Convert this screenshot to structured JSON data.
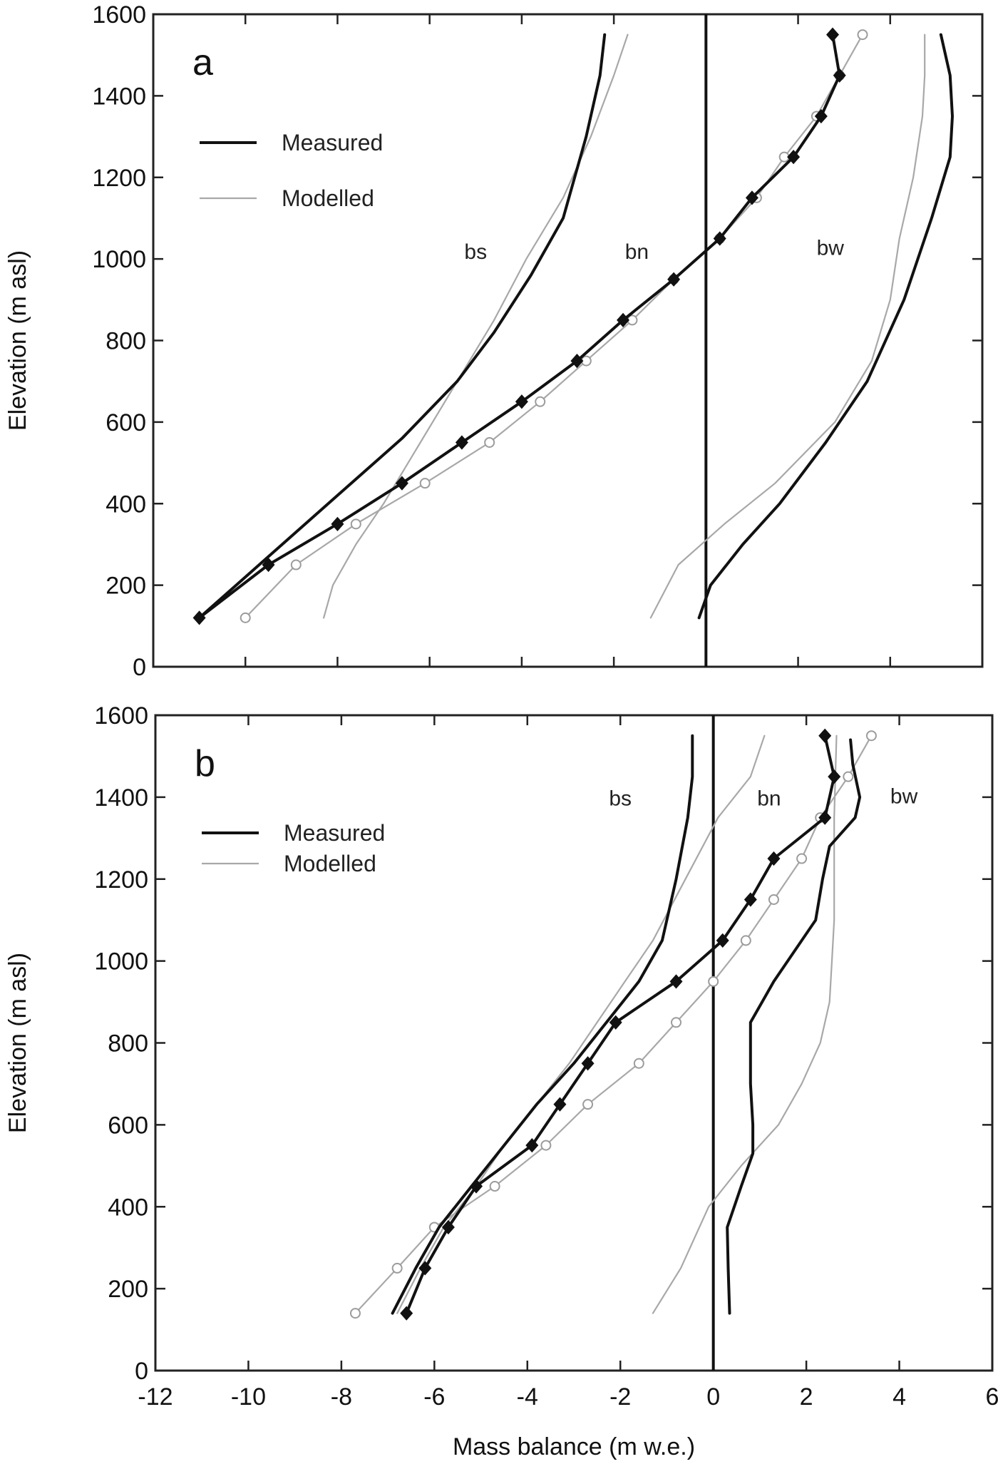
{
  "chart_data": [
    {
      "type": "line",
      "panel_label": "a",
      "xlim": [
        -12,
        6
      ],
      "ylim": [
        0,
        1600
      ],
      "x_ticks": [
        -12,
        -10,
        -8,
        -6,
        -4,
        -2,
        0,
        2,
        4,
        6
      ],
      "y_ticks": [
        0,
        200,
        400,
        600,
        800,
        1000,
        1200,
        1400,
        1600
      ],
      "y_tick_labels": [
        "0",
        "200",
        "400",
        "600",
        "800",
        "1000",
        "1200",
        "1400",
        "1600"
      ],
      "x_tick_labels_shown": false,
      "ylabel": "Elevation (m asl)",
      "xlabel": "",
      "zero_line_x": 0,
      "legend": {
        "placement": "top-left",
        "entries": [
          {
            "label": "Measured",
            "style": "measured"
          },
          {
            "label": "Modelled",
            "style": "modelled"
          }
        ]
      },
      "curve_labels": [
        {
          "text": "bs",
          "x": -5,
          "y": 1000
        },
        {
          "text": "bn",
          "x": -1.5,
          "y": 1000
        },
        {
          "text": "bw",
          "x": 2.7,
          "y": 1010
        }
      ],
      "series": [
        {
          "curve": "bs",
          "style": "measured",
          "x": [
            -11,
            -10.2,
            -9.2,
            -8,
            -6.6,
            -5.4,
            -4.6,
            -3.8,
            -3.1,
            -2.6,
            -2.3,
            -2.2
          ],
          "y": [
            120,
            200,
            300,
            420,
            560,
            700,
            820,
            960,
            1100,
            1300,
            1450,
            1550
          ]
        },
        {
          "curve": "bs",
          "style": "modelled",
          "x": [
            -8.3,
            -8.1,
            -7.6,
            -7,
            -6.2,
            -5.4,
            -4.6,
            -3.9,
            -3.1,
            -2.5,
            -2,
            -1.7
          ],
          "y": [
            120,
            200,
            300,
            400,
            550,
            700,
            850,
            1000,
            1150,
            1300,
            1450,
            1550
          ]
        },
        {
          "curve": "bn",
          "style": "measured",
          "markers": true,
          "x": [
            -11,
            -9.5,
            -8,
            -6.6,
            -5.3,
            -4,
            -2.8,
            -1.8,
            -0.7,
            0.3,
            1,
            1.9,
            2.5,
            2.9,
            2.75
          ],
          "y": [
            120,
            250,
            350,
            450,
            550,
            650,
            750,
            850,
            950,
            1050,
            1150,
            1250,
            1350,
            1450,
            1550
          ]
        },
        {
          "curve": "bn",
          "style": "modelled",
          "markers": true,
          "x": [
            -10,
            -8.9,
            -7.6,
            -6.1,
            -4.7,
            -3.6,
            -2.6,
            -1.6,
            -0.7,
            0.3,
            1.1,
            1.7,
            2.4,
            2.9,
            3.4
          ],
          "y": [
            120,
            250,
            350,
            450,
            550,
            650,
            750,
            850,
            950,
            1050,
            1150,
            1250,
            1350,
            1450,
            1550
          ]
        },
        {
          "curve": "bw",
          "style": "measured",
          "x": [
            -0.15,
            0.1,
            0.8,
            1.6,
            2.6,
            3.5,
            4.3,
            4.9,
            5.3,
            5.35,
            5.3,
            5.1
          ],
          "y": [
            120,
            200,
            300,
            400,
            550,
            700,
            900,
            1100,
            1250,
            1350,
            1450,
            1550
          ]
        },
        {
          "curve": "bw",
          "style": "modelled",
          "x": [
            -1.2,
            -0.6,
            0.4,
            1.5,
            2.8,
            3.6,
            4,
            4.2,
            4.5,
            4.7,
            4.75,
            4.75
          ],
          "y": [
            120,
            250,
            350,
            450,
            600,
            750,
            900,
            1050,
            1200,
            1350,
            1450,
            1550
          ]
        }
      ]
    },
    {
      "type": "line",
      "panel_label": "b",
      "xlim": [
        -12,
        6
      ],
      "ylim": [
        0,
        1600
      ],
      "x_ticks": [
        -12,
        -10,
        -8,
        -6,
        -4,
        -2,
        0,
        2,
        4,
        6
      ],
      "x_tick_labels": [
        "-12",
        "-10",
        "-8",
        "-6",
        "-4",
        "-2",
        "0",
        "2",
        "4",
        "6"
      ],
      "y_ticks": [
        0,
        200,
        400,
        600,
        800,
        1000,
        1200,
        1400,
        1600
      ],
      "y_tick_labels": [
        "0",
        "200",
        "400",
        "600",
        "800",
        "1000",
        "1200",
        "1400",
        "1600"
      ],
      "ylabel": "Elevation (m asl)",
      "xlabel": "Mass balance (m w.e.)",
      "zero_line_x": 0,
      "legend": {
        "placement": "top-left",
        "entries": [
          {
            "label": "Measured",
            "style": "measured"
          },
          {
            "label": "Modelled",
            "style": "modelled"
          }
        ]
      },
      "curve_labels": [
        {
          "text": "bs",
          "x": -2,
          "y": 1380
        },
        {
          "text": "bn",
          "x": 1.2,
          "y": 1380
        },
        {
          "text": "bw",
          "x": 4.1,
          "y": 1385
        }
      ],
      "series": [
        {
          "curve": "bs",
          "style": "measured",
          "x": [
            -6.9,
            -6.4,
            -5.9,
            -5.2,
            -4.5,
            -3.8,
            -3,
            -2.3,
            -1.6,
            -1.1,
            -0.8,
            -0.55,
            -0.45,
            -0.45
          ],
          "y": [
            140,
            250,
            350,
            450,
            550,
            650,
            750,
            850,
            950,
            1050,
            1200,
            1350,
            1450,
            1550
          ]
        },
        {
          "curve": "bs",
          "style": "modelled",
          "x": [
            -6.8,
            -6.3,
            -5.8,
            -5.1,
            -4.5,
            -3.8,
            -3.1,
            -2.5,
            -1.9,
            -1.3,
            -0.6,
            0.1,
            0.8,
            1.1
          ],
          "y": [
            140,
            250,
            350,
            450,
            550,
            650,
            750,
            850,
            950,
            1050,
            1200,
            1350,
            1450,
            1550
          ]
        },
        {
          "curve": "bn",
          "style": "measured",
          "markers": true,
          "x": [
            -6.6,
            -6.2,
            -5.7,
            -5.1,
            -3.9,
            -3.3,
            -2.7,
            -2.1,
            -0.8,
            0.2,
            0.8,
            1.3,
            2.4,
            2.6,
            2.4
          ],
          "y": [
            140,
            250,
            350,
            450,
            550,
            650,
            750,
            850,
            950,
            1050,
            1150,
            1250,
            1350,
            1450,
            1550
          ]
        },
        {
          "curve": "bn",
          "style": "modelled",
          "markers": true,
          "x": [
            -7.7,
            -6.8,
            -6,
            -4.7,
            -3.6,
            -2.7,
            -1.6,
            -0.8,
            0,
            0.7,
            1.3,
            1.9,
            2.3,
            2.9,
            3.4
          ],
          "y": [
            140,
            250,
            350,
            450,
            550,
            650,
            750,
            850,
            950,
            1050,
            1150,
            1250,
            1350,
            1450,
            1550
          ]
        },
        {
          "curve": "bw",
          "style": "measured",
          "x": [
            0.35,
            0.32,
            0.3,
            0.6,
            0.85,
            0.85,
            0.8,
            0.8,
            1.3,
            2.2,
            2.35,
            2.5,
            3.05,
            3.15,
            3,
            2.95
          ],
          "y": [
            140,
            250,
            350,
            450,
            530,
            600,
            700,
            850,
            950,
            1100,
            1200,
            1280,
            1350,
            1400,
            1480,
            1540
          ]
        },
        {
          "curve": "bw",
          "style": "modelled",
          "x": [
            -1.3,
            -0.7,
            -0.1,
            0.6,
            1.4,
            1.9,
            2.3,
            2.5,
            2.55,
            2.6,
            2.6,
            2.6,
            2.65
          ],
          "y": [
            140,
            250,
            400,
            500,
            600,
            700,
            800,
            900,
            1000,
            1100,
            1200,
            1350,
            1550
          ]
        }
      ]
    }
  ]
}
